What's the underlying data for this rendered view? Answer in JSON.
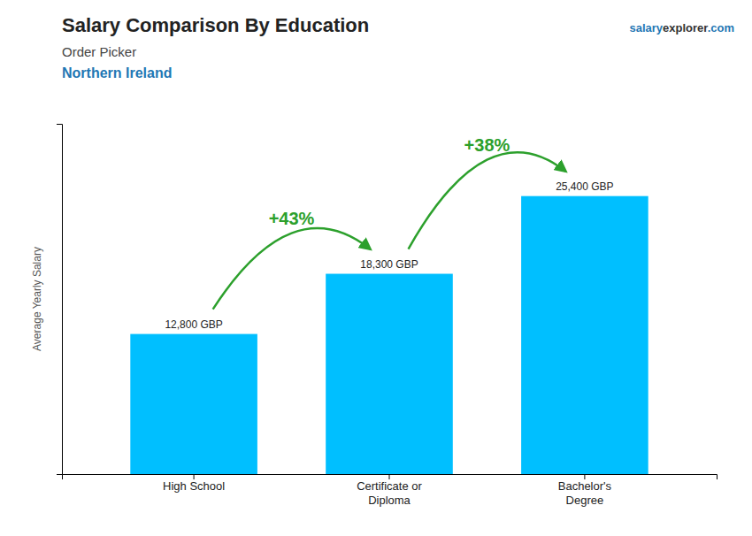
{
  "chart_data": {
    "type": "bar",
    "title": "Salary Comparison By Education",
    "subtitle": [
      "Order Picker",
      "Northern Ireland"
    ],
    "brand": [
      "salary",
      "explorer",
      ".com"
    ],
    "y_label": "Average Yearly Salary",
    "categories": [
      "High School",
      "Certificate or\nDiploma",
      "Bachelor's\nDegree"
    ],
    "values": [
      12800,
      18300,
      25400
    ],
    "value_labels": [
      "12,800 GBP",
      "18,300 GBP",
      "25,400 GBP"
    ],
    "data_labels": true,
    "color": "#00BFFF",
    "ylim": [
      0,
      32000
    ],
    "yticks": [],
    "tick_labels": "x",
    "annotations": [
      {
        "text": "+43%",
        "from": "High School",
        "to": "Certificate or\nDiploma"
      },
      {
        "text": "+38%",
        "from": "Certificate or\nDiploma",
        "to": "Bachelor's\nDegree"
      }
    ]
  }
}
